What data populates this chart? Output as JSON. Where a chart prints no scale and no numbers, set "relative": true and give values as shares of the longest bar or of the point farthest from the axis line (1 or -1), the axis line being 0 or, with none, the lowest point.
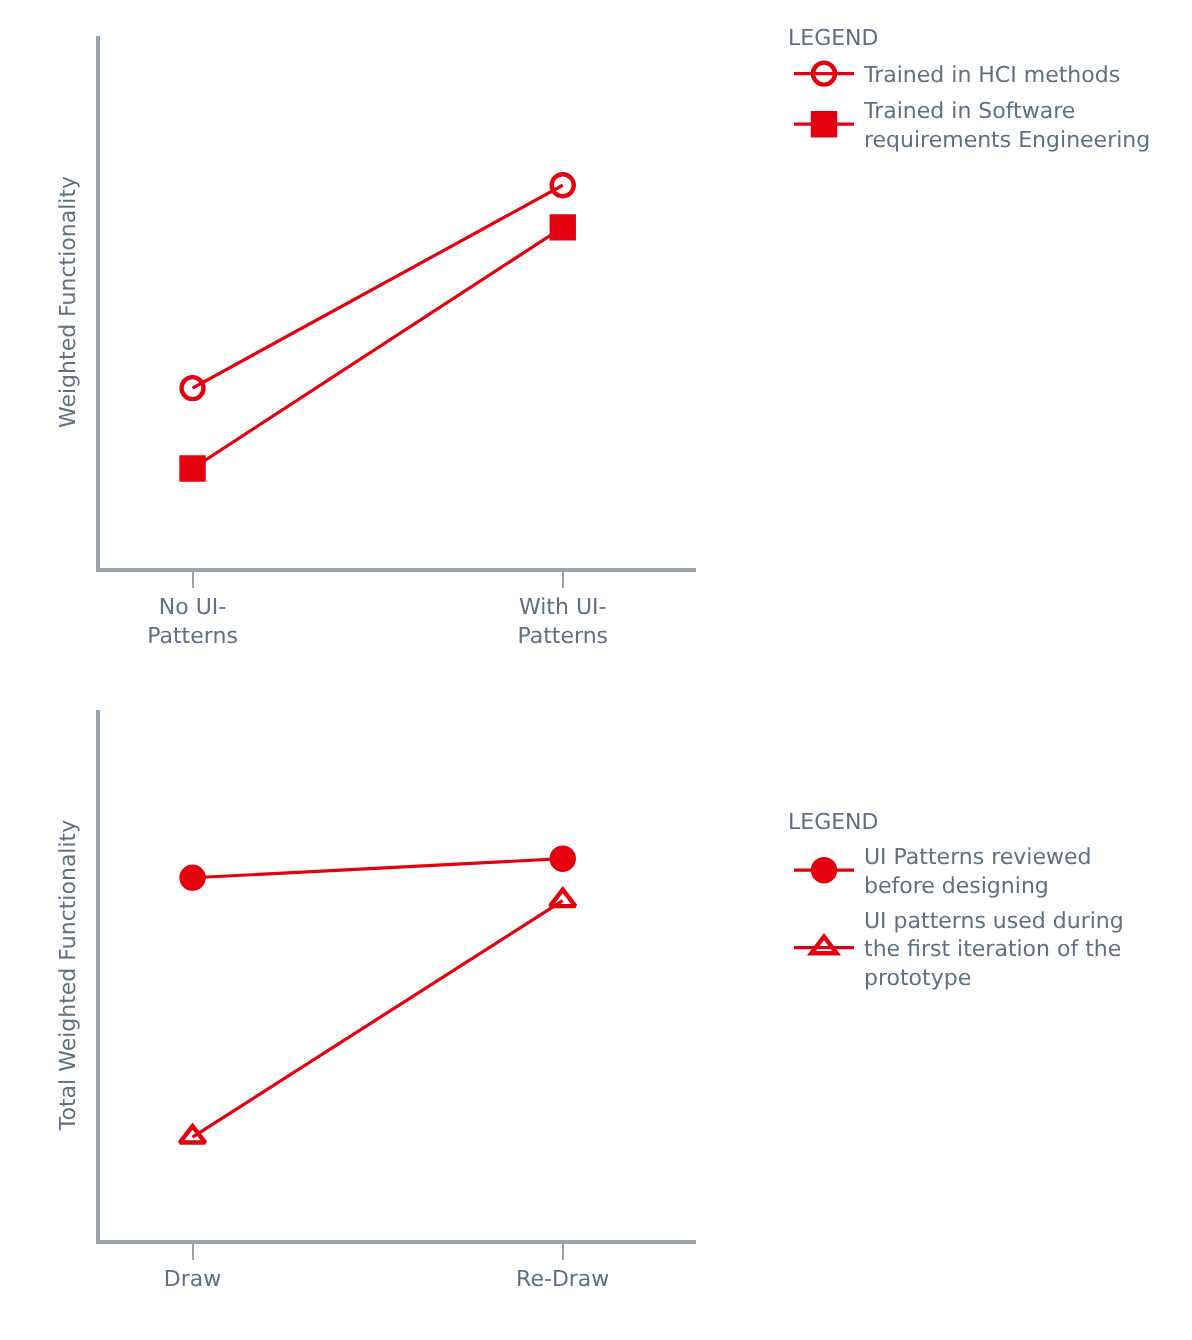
{
  "chart_data": [
    {
      "type": "line",
      "relative": true,
      "ylabel": "Weighted Functionality",
      "legend_title": "LEGEND",
      "legend": "top right",
      "categories": [
        "No UI-\nPatterns",
        "With UI-\nPatterns"
      ],
      "series": [
        {
          "name": "Trained in HCI methods",
          "color": "#e3000f",
          "marker": "circle-open",
          "values": [
            0.47,
            1
          ]
        },
        {
          "name": "Trained in Software\nrequirements Engineering",
          "color": "#e3000f",
          "marker": "square",
          "values": [
            0.26,
            0.89
          ]
        }
      ]
    },
    {
      "type": "line",
      "relative": true,
      "ylabel": "Total Weighted Functionality",
      "legend_title": "LEGEND",
      "legend": "right",
      "categories": [
        "Draw",
        "Re-Draw"
      ],
      "series": [
        {
          "name": "UI Patterns reviewed\nbefore designing",
          "color": "#e3000f",
          "marker": "circle",
          "values": [
            0.95,
            1
          ]
        },
        {
          "name": "UI patterns used during\nthe first iteration of the\nprototype",
          "color": "#e3000f",
          "marker": "triangle-open",
          "values": [
            0.27,
            0.89
          ]
        }
      ]
    }
  ]
}
